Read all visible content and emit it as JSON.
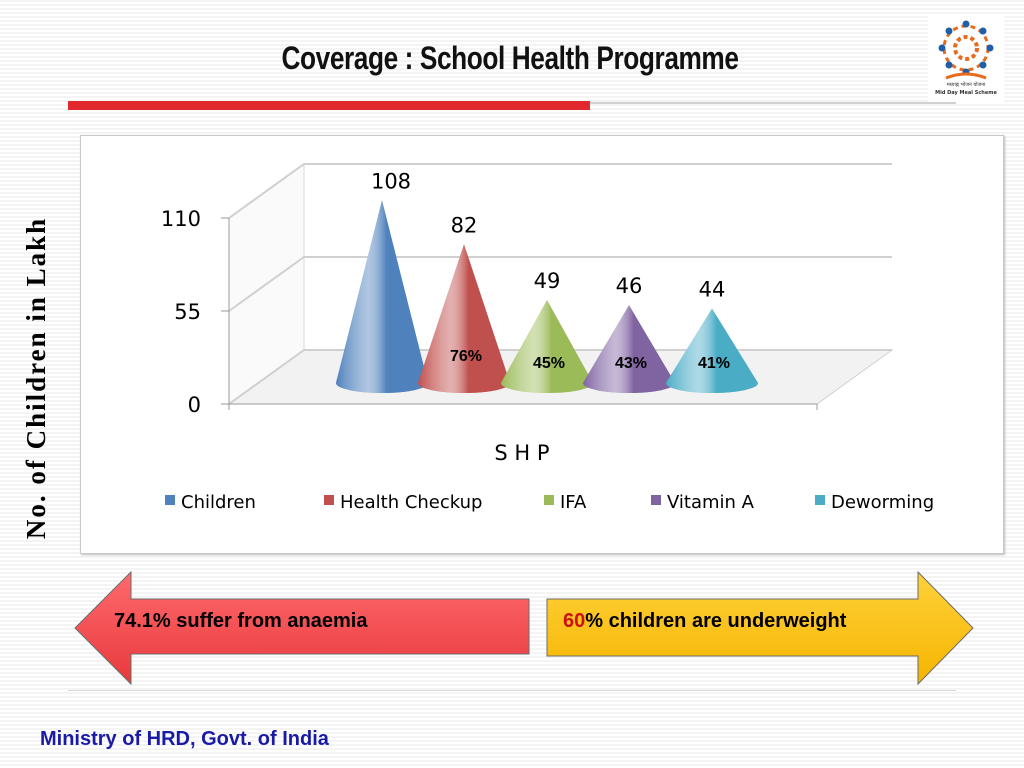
{
  "slide": {
    "title": "Coverage : School Health Programme",
    "footer": "Ministry of HRD, Govt. of India",
    "logo_text": "मध्याह्न भोजन योजना",
    "logo_subtext": "Mid Day Meal Scheme"
  },
  "callouts": {
    "left_text": "74.1% suffer from anaemia",
    "right_number": "60",
    "right_text": "% children are underweight",
    "left_color": "#f24a4e",
    "right_color": "#ffc000"
  },
  "chart_data": {
    "type": "bar",
    "style": "3d-cone",
    "xlabel": "S H P",
    "ylabel": "No. of Children in Lakh",
    "ylim": [
      0,
      110
    ],
    "yticks": [
      "0",
      "55",
      "110"
    ],
    "legend_position": "bottom",
    "series": [
      {
        "name": "Children",
        "value": 108,
        "value_label": "108",
        "pct_label": "",
        "color": "#4f81bd"
      },
      {
        "name": "Health Checkup",
        "value": 82,
        "value_label": "82",
        "pct_label": "76%",
        "color": "#c0504d"
      },
      {
        "name": "IFA",
        "value": 49,
        "value_label": "49",
        "pct_label": "45%",
        "color": "#9bbb59"
      },
      {
        "name": "Vitamin A",
        "value": 46,
        "value_label": "46",
        "pct_label": "43%",
        "color": "#8064a2"
      },
      {
        "name": "Deworming",
        "value": 44,
        "value_label": "44",
        "pct_label": "41%",
        "color": "#4bacc6"
      }
    ]
  }
}
